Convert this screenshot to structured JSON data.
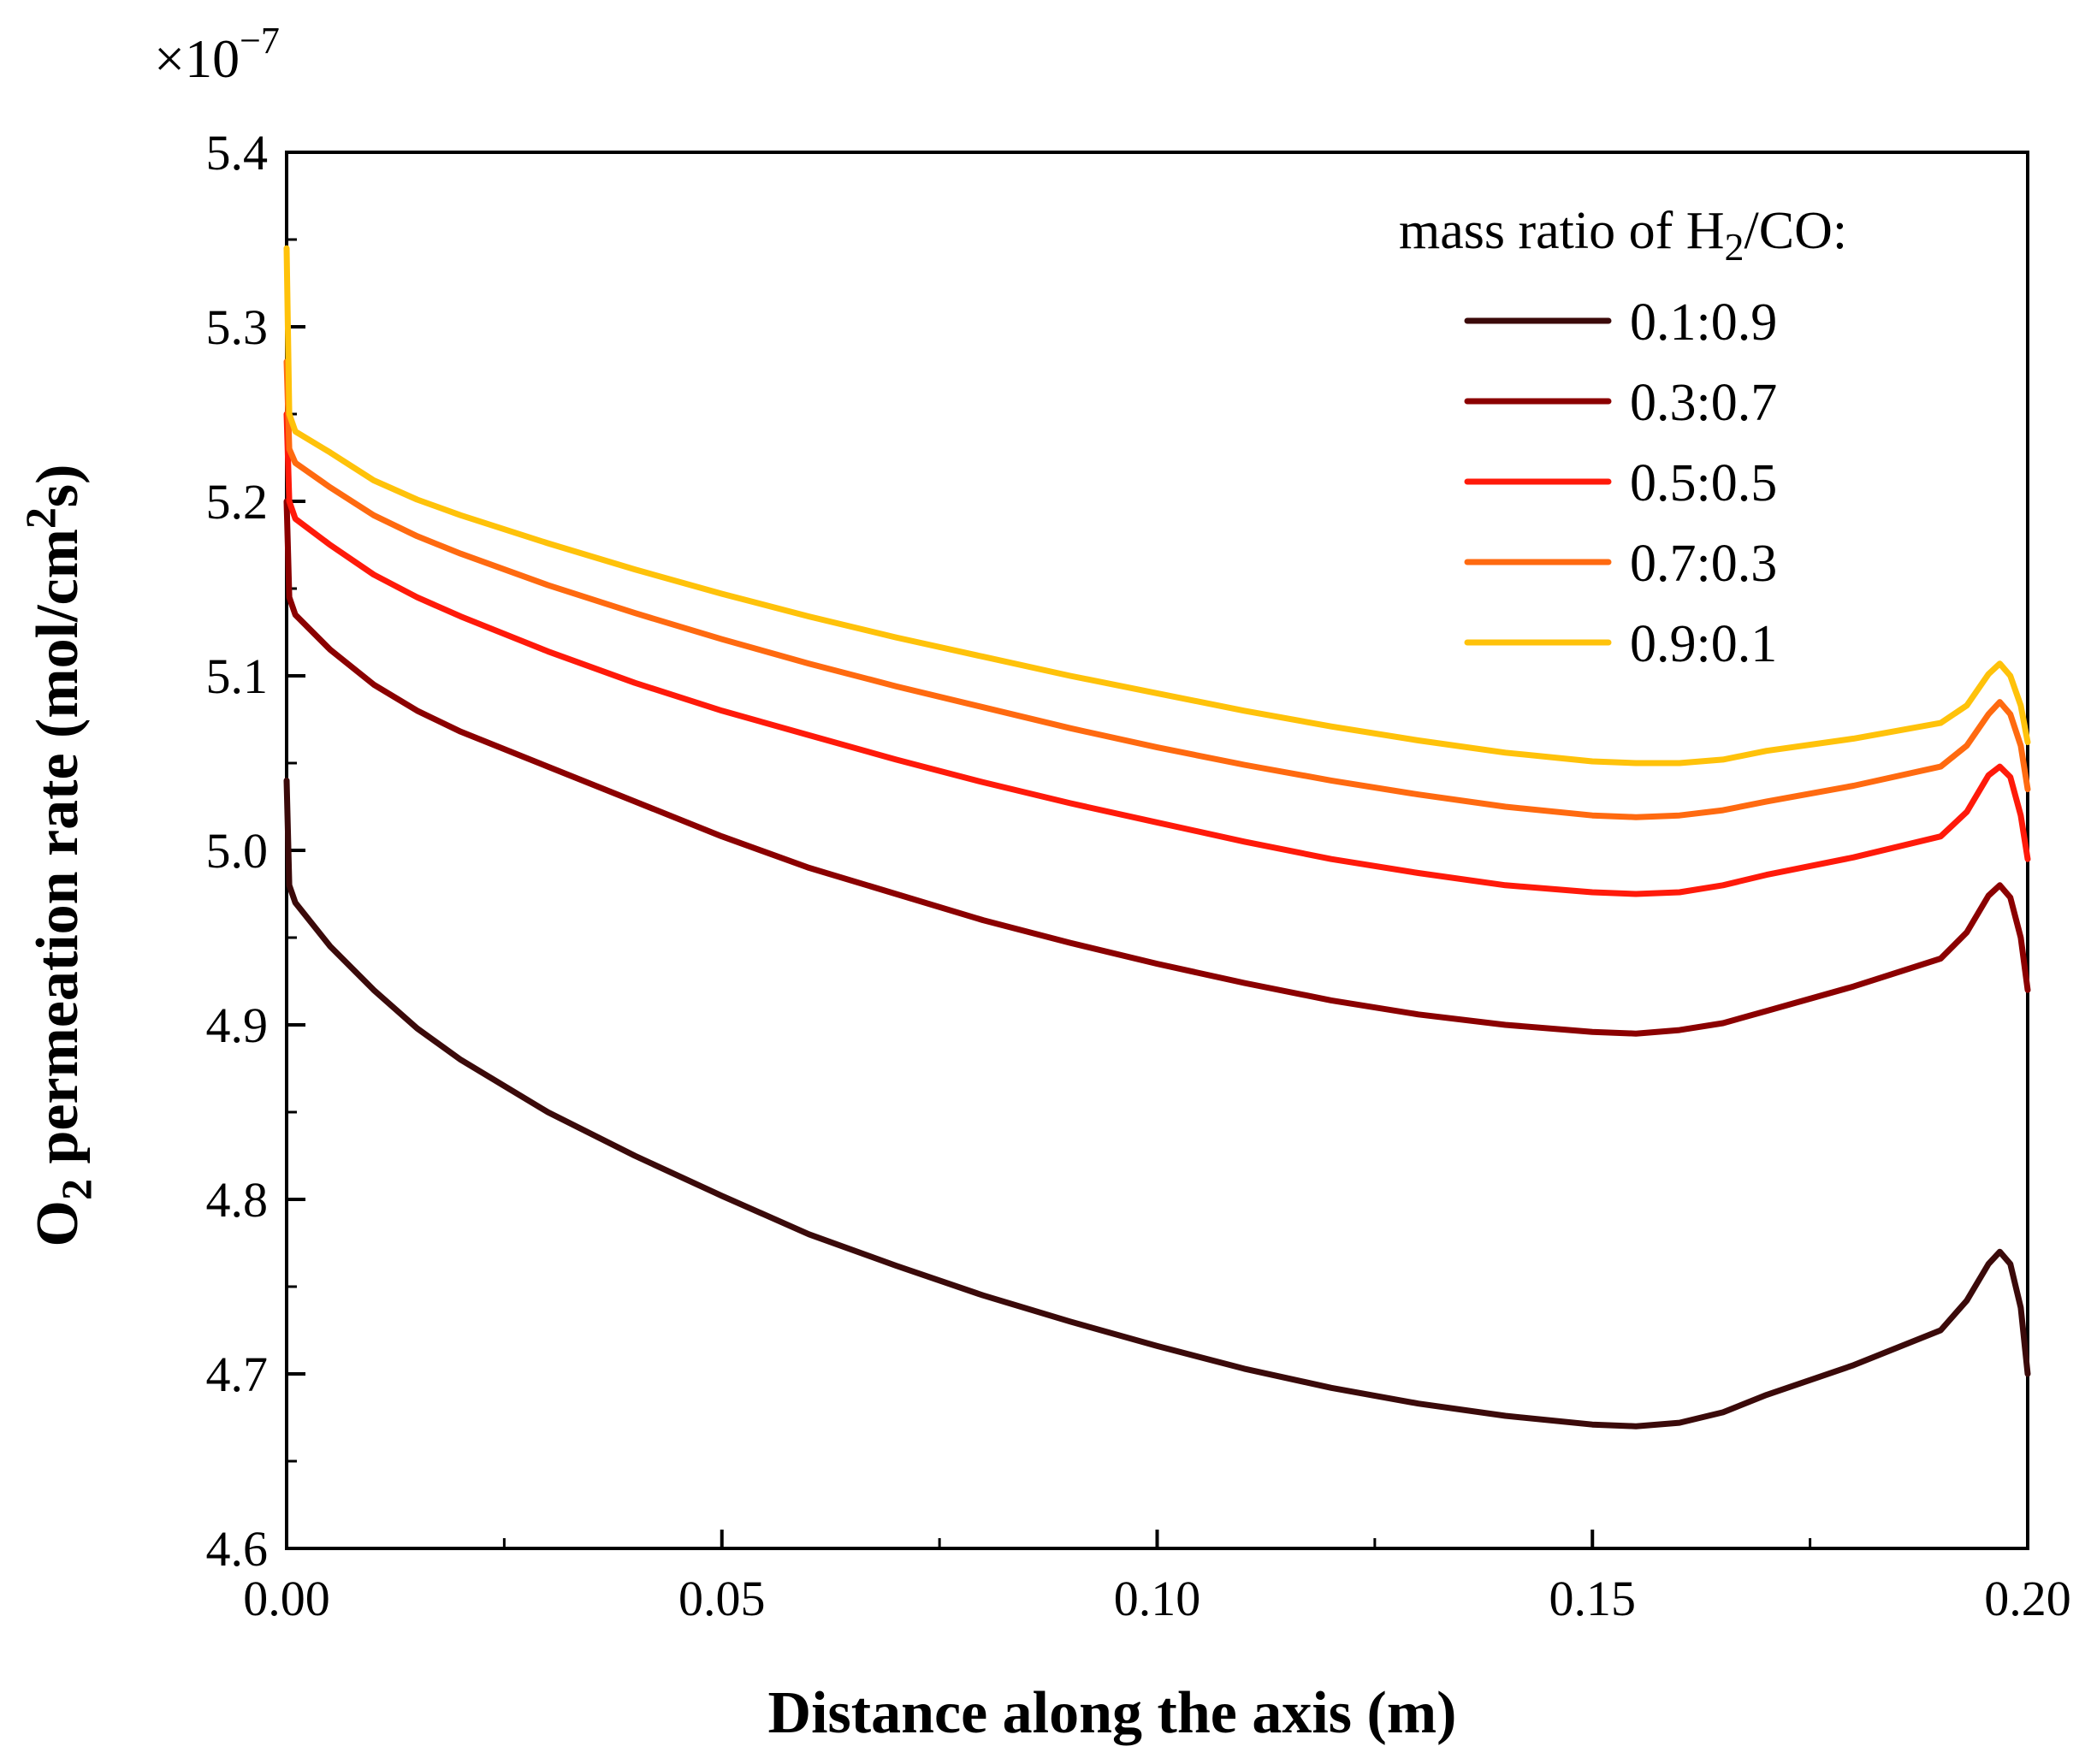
{
  "chart_data": {
    "type": "line",
    "xlabel": "Distance along the axis (m)",
    "ylabel_main": "O",
    "ylabel_sub": "2",
    "ylabel_rest": " permeation rate (mol/cm",
    "ylabel_sup": "2",
    "ylabel_end": "s)",
    "y_multiplier_base": "×10",
    "y_multiplier_exp": "−7",
    "xlim": [
      0.0,
      0.2
    ],
    "ylim": [
      4.6,
      5.4
    ],
    "x_ticks": [
      0.0,
      0.05,
      0.1,
      0.15,
      0.2
    ],
    "x_tick_labels": [
      "0.00",
      "0.05",
      "0.10",
      "0.15",
      "0.20"
    ],
    "y_ticks": [
      4.6,
      4.7,
      4.8,
      4.9,
      5.0,
      5.1,
      5.2,
      5.3,
      5.4
    ],
    "y_tick_labels": [
      "4.6",
      "4.7",
      "4.8",
      "4.9",
      "5.0",
      "5.1",
      "5.2",
      "5.3",
      "5.4"
    ],
    "legend_title_main": "mass ratio of H",
    "legend_title_sub": "2",
    "legend_title_end": "/CO:",
    "legend_position": "top-right",
    "series": [
      {
        "name": "0.1:0.9",
        "color": "#3b0a0a",
        "points": [
          [
            0.0,
            5.04
          ],
          [
            0.0003,
            4.98
          ],
          [
            0.001,
            4.97
          ],
          [
            0.005,
            4.945
          ],
          [
            0.01,
            4.92
          ],
          [
            0.015,
            4.898
          ],
          [
            0.02,
            4.88
          ],
          [
            0.03,
            4.85
          ],
          [
            0.04,
            4.825
          ],
          [
            0.05,
            4.802
          ],
          [
            0.06,
            4.78
          ],
          [
            0.07,
            4.762
          ],
          [
            0.08,
            4.745
          ],
          [
            0.09,
            4.73
          ],
          [
            0.1,
            4.716
          ],
          [
            0.11,
            4.703
          ],
          [
            0.12,
            4.692
          ],
          [
            0.13,
            4.683
          ],
          [
            0.14,
            4.676
          ],
          [
            0.15,
            4.671
          ],
          [
            0.155,
            4.67
          ],
          [
            0.16,
            4.672
          ],
          [
            0.165,
            4.678
          ],
          [
            0.17,
            4.688
          ],
          [
            0.18,
            4.705
          ],
          [
            0.19,
            4.725
          ],
          [
            0.193,
            4.742
          ],
          [
            0.1955,
            4.763
          ],
          [
            0.1968,
            4.77
          ],
          [
            0.198,
            4.763
          ],
          [
            0.1992,
            4.738
          ],
          [
            0.2,
            4.7
          ]
        ]
      },
      {
        "name": "0.3:0.7",
        "color": "#8b0000",
        "points": [
          [
            0.0,
            5.2
          ],
          [
            0.0003,
            5.145
          ],
          [
            0.001,
            5.135
          ],
          [
            0.005,
            5.115
          ],
          [
            0.01,
            5.095
          ],
          [
            0.015,
            5.08
          ],
          [
            0.02,
            5.068
          ],
          [
            0.03,
            5.048
          ],
          [
            0.04,
            5.028
          ],
          [
            0.05,
            5.008
          ],
          [
            0.06,
            4.99
          ],
          [
            0.07,
            4.975
          ],
          [
            0.08,
            4.96
          ],
          [
            0.09,
            4.947
          ],
          [
            0.1,
            4.935
          ],
          [
            0.11,
            4.924
          ],
          [
            0.12,
            4.914
          ],
          [
            0.13,
            4.906
          ],
          [
            0.14,
            4.9
          ],
          [
            0.15,
            4.896
          ],
          [
            0.155,
            4.895
          ],
          [
            0.16,
            4.897
          ],
          [
            0.165,
            4.901
          ],
          [
            0.17,
            4.908
          ],
          [
            0.18,
            4.922
          ],
          [
            0.19,
            4.938
          ],
          [
            0.193,
            4.953
          ],
          [
            0.1955,
            4.974
          ],
          [
            0.1968,
            4.98
          ],
          [
            0.198,
            4.973
          ],
          [
            0.1992,
            4.95
          ],
          [
            0.2,
            4.92
          ]
        ]
      },
      {
        "name": "0.5:0.5",
        "color": "#ff1a0a",
        "points": [
          [
            0.0,
            5.25
          ],
          [
            0.0003,
            5.2
          ],
          [
            0.001,
            5.19
          ],
          [
            0.005,
            5.175
          ],
          [
            0.01,
            5.158
          ],
          [
            0.015,
            5.145
          ],
          [
            0.02,
            5.134
          ],
          [
            0.03,
            5.114
          ],
          [
            0.04,
            5.096
          ],
          [
            0.05,
            5.08
          ],
          [
            0.06,
            5.066
          ],
          [
            0.07,
            5.052
          ],
          [
            0.08,
            5.039
          ],
          [
            0.09,
            5.027
          ],
          [
            0.1,
            5.016
          ],
          [
            0.11,
            5.005
          ],
          [
            0.12,
            4.995
          ],
          [
            0.13,
            4.987
          ],
          [
            0.14,
            4.98
          ],
          [
            0.15,
            4.976
          ],
          [
            0.155,
            4.975
          ],
          [
            0.16,
            4.976
          ],
          [
            0.165,
            4.98
          ],
          [
            0.17,
            4.986
          ],
          [
            0.18,
            4.996
          ],
          [
            0.19,
            5.008
          ],
          [
            0.193,
            5.022
          ],
          [
            0.1955,
            5.043
          ],
          [
            0.1968,
            5.048
          ],
          [
            0.198,
            5.042
          ],
          [
            0.1992,
            5.02
          ],
          [
            0.2,
            4.995
          ]
        ]
      },
      {
        "name": "0.7:0.3",
        "color": "#ff6a10",
        "points": [
          [
            0.0,
            5.28
          ],
          [
            0.0003,
            5.23
          ],
          [
            0.001,
            5.222
          ],
          [
            0.005,
            5.208
          ],
          [
            0.01,
            5.192
          ],
          [
            0.015,
            5.18
          ],
          [
            0.02,
            5.17
          ],
          [
            0.03,
            5.152
          ],
          [
            0.04,
            5.136
          ],
          [
            0.05,
            5.121
          ],
          [
            0.06,
            5.107
          ],
          [
            0.07,
            5.094
          ],
          [
            0.08,
            5.082
          ],
          [
            0.09,
            5.07
          ],
          [
            0.1,
            5.059
          ],
          [
            0.11,
            5.049
          ],
          [
            0.12,
            5.04
          ],
          [
            0.13,
            5.032
          ],
          [
            0.14,
            5.025
          ],
          [
            0.15,
            5.02
          ],
          [
            0.155,
            5.019
          ],
          [
            0.16,
            5.02
          ],
          [
            0.165,
            5.023
          ],
          [
            0.17,
            5.028
          ],
          [
            0.18,
            5.037
          ],
          [
            0.19,
            5.048
          ],
          [
            0.193,
            5.06
          ],
          [
            0.1955,
            5.078
          ],
          [
            0.1968,
            5.085
          ],
          [
            0.198,
            5.078
          ],
          [
            0.1992,
            5.06
          ],
          [
            0.2,
            5.035
          ]
        ]
      },
      {
        "name": "0.9:0.1",
        "color": "#ffc20a",
        "points": [
          [
            0.0,
            5.345
          ],
          [
            0.0003,
            5.25
          ],
          [
            0.001,
            5.24
          ],
          [
            0.005,
            5.228
          ],
          [
            0.01,
            5.212
          ],
          [
            0.015,
            5.201
          ],
          [
            0.02,
            5.192
          ],
          [
            0.03,
            5.176
          ],
          [
            0.04,
            5.161
          ],
          [
            0.05,
            5.147
          ],
          [
            0.06,
            5.134
          ],
          [
            0.07,
            5.122
          ],
          [
            0.08,
            5.111
          ],
          [
            0.09,
            5.1
          ],
          [
            0.1,
            5.09
          ],
          [
            0.11,
            5.08
          ],
          [
            0.12,
            5.071
          ],
          [
            0.13,
            5.063
          ],
          [
            0.14,
            5.056
          ],
          [
            0.15,
            5.051
          ],
          [
            0.155,
            5.05
          ],
          [
            0.16,
            5.05
          ],
          [
            0.165,
            5.052
          ],
          [
            0.17,
            5.057
          ],
          [
            0.18,
            5.064
          ],
          [
            0.19,
            5.073
          ],
          [
            0.193,
            5.083
          ],
          [
            0.1955,
            5.101
          ],
          [
            0.1968,
            5.107
          ],
          [
            0.198,
            5.1
          ],
          [
            0.1992,
            5.083
          ],
          [
            0.2,
            5.062
          ]
        ]
      }
    ]
  }
}
